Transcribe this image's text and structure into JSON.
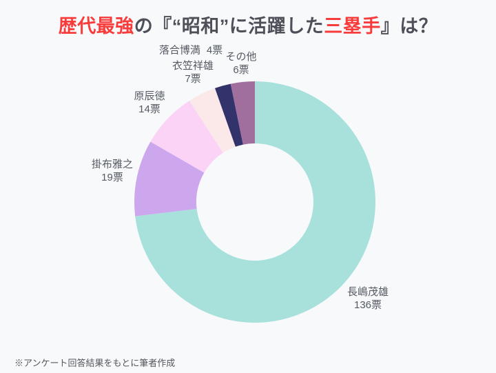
{
  "title": {
    "part1": "歴代最強",
    "part2": "の『“昭和”に活躍した",
    "part3": "三塁手",
    "part4": "』は？",
    "accent_color": "#F83C3C",
    "text_color": "#4E4F58"
  },
  "chart_data": {
    "type": "pie",
    "donut": true,
    "start_angle_deg": 0,
    "direction": "clockwise",
    "grid": "off",
    "legend_position": "none",
    "labels_placement": "outside",
    "slices": [
      {
        "name": "長嶋茂雄",
        "votes": 136,
        "votes_label": "136票",
        "color": "#A8E1DB"
      },
      {
        "name": "掛布雅之",
        "votes": 19,
        "votes_label": "19票",
        "color": "#CDA7ED"
      },
      {
        "name": "原辰徳",
        "votes": 14,
        "votes_label": "14票",
        "color": "#FBD3F7"
      },
      {
        "name": "衣笠祥雄",
        "votes": 7,
        "votes_label": "7票",
        "color": "#FBE9E9"
      },
      {
        "name": "落合博満",
        "votes": 4,
        "votes_label": "4票",
        "color": "#32336B"
      },
      {
        "name": "その他",
        "votes": 6,
        "votes_label": "6票",
        "color": "#A16F9E"
      }
    ]
  },
  "footer": {
    "note": "※アンケート回答結果をもとに筆者作成"
  }
}
